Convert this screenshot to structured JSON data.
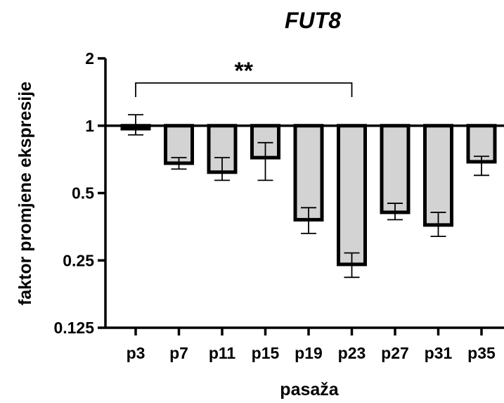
{
  "chart_data": {
    "type": "bar",
    "title": "FUT8",
    "xlabel": "pasaža",
    "ylabel": "faktor promjene ekspresije",
    "y_scale": "log2",
    "ylim": [
      0.125,
      2
    ],
    "yticks": [
      0.125,
      0.25,
      0.5,
      1,
      2
    ],
    "ytick_labels": [
      "0.125",
      "0.25",
      "0.5",
      "1",
      "2"
    ],
    "baseline": 1,
    "categories": [
      "p3",
      "p7",
      "p11",
      "p15",
      "p19",
      "p23",
      "p27",
      "p31",
      "p35"
    ],
    "values": [
      0.97,
      0.68,
      0.62,
      0.72,
      0.38,
      0.24,
      0.41,
      0.36,
      0.69
    ],
    "error_low": [
      0.91,
      0.64,
      0.57,
      0.57,
      0.33,
      0.21,
      0.38,
      0.32,
      0.6
    ],
    "error_high": [
      1.12,
      0.72,
      0.72,
      0.84,
      0.43,
      0.27,
      0.45,
      0.41,
      0.73
    ],
    "bar_fill": "#d3d3d3",
    "bar_stroke": "#000000",
    "grid": false,
    "significance": [
      {
        "from": "p3",
        "to": "p23",
        "label": "**"
      }
    ]
  }
}
